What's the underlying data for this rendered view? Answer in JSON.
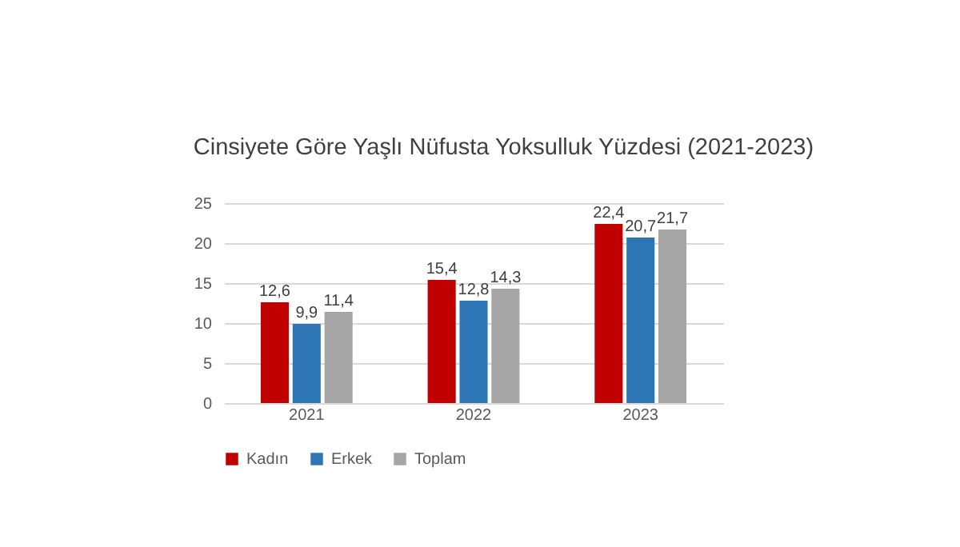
{
  "chart_data": {
    "type": "bar",
    "title": "Cinsiyete Göre Yaşlı Nüfusta Yoksulluk Yüzdesi (2021-2023)",
    "categories": [
      "2021",
      "2022",
      "2023"
    ],
    "series": [
      {
        "name": "Kadın",
        "color": "#c00000",
        "values": [
          12.6,
          15.4,
          22.4
        ],
        "value_labels": [
          "12,6",
          "15,4",
          "22,4"
        ]
      },
      {
        "name": "Erkek",
        "color": "#2e75b6",
        "values": [
          9.9,
          12.8,
          20.7
        ],
        "value_labels": [
          "9,9",
          "12,8",
          "20,7"
        ]
      },
      {
        "name": "Toplam",
        "color": "#a5a5a5",
        "values": [
          11.4,
          14.3,
          21.7
        ],
        "value_labels": [
          "11,4",
          "14,3",
          "21,7"
        ]
      }
    ],
    "ylim": [
      0,
      25
    ],
    "yticks": [
      0,
      5,
      10,
      15,
      20,
      25
    ],
    "grid": "y",
    "legend": "bottom"
  }
}
